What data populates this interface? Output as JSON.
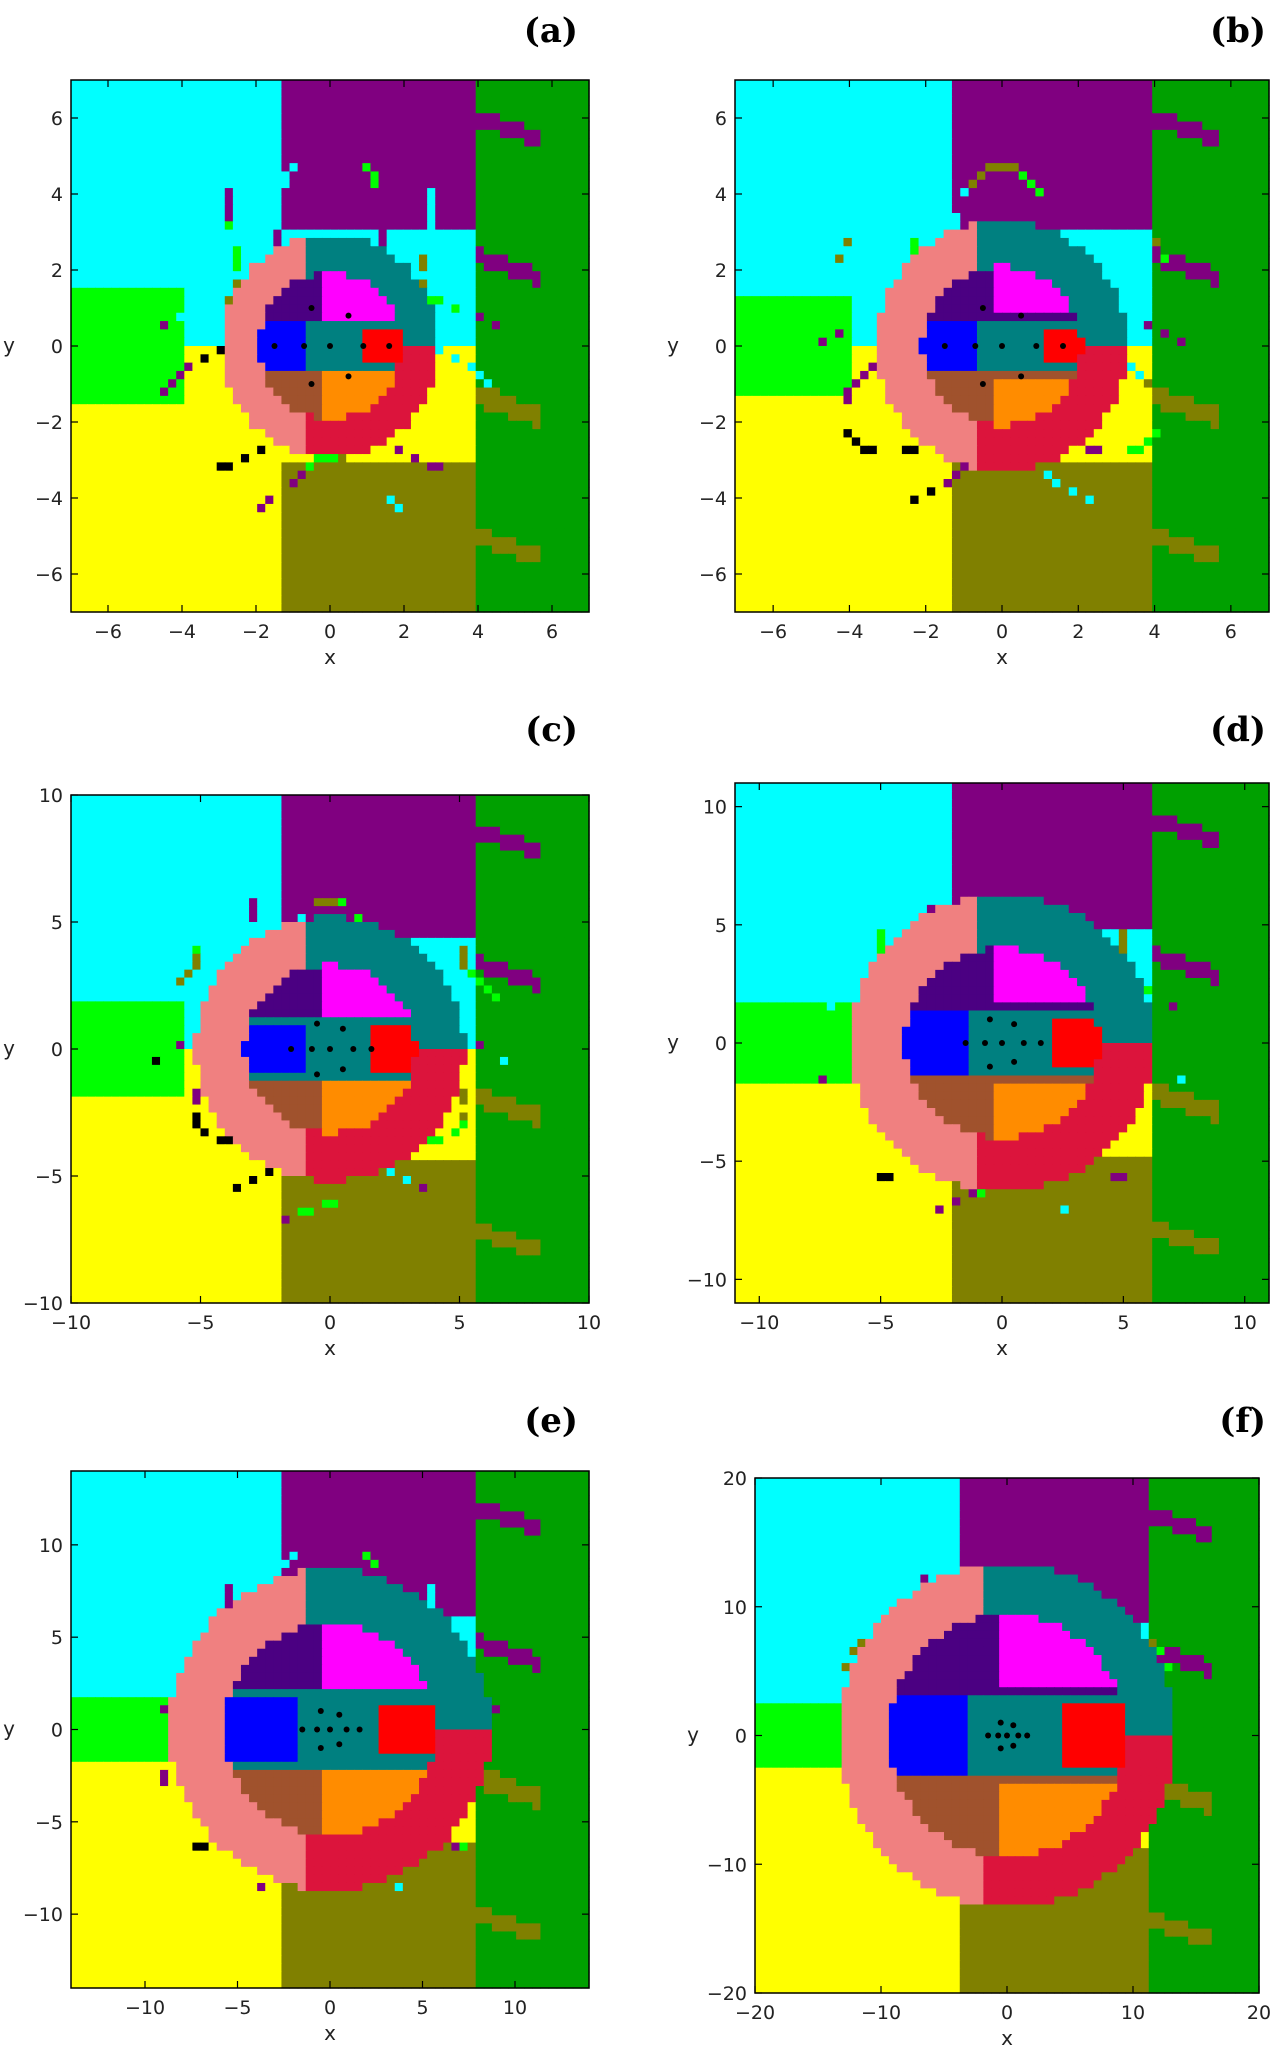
{
  "figure": {
    "palette": {
      "cyan": "#00FFFF",
      "yellow": "#FFFF00",
      "green": "#00A000",
      "lime": "#00FF00",
      "salmon": "#F08080",
      "teal": "#008080",
      "purple": "#800080",
      "olive": "#808000",
      "crimson": "#DC143C",
      "magenta": "#FF00FF",
      "blue": "#0000FF",
      "indigo": "#4B0082",
      "orange": "#FF8C00",
      "brown": "#A0522D",
      "red": "#FF0000",
      "black": "#000000"
    }
  },
  "chart_data": [
    {
      "type": "heatmap",
      "panel_label": "(a)",
      "xlabel": "x",
      "ylabel": "y",
      "xlim": [
        -7,
        7
      ],
      "ylim": [
        -7,
        7
      ],
      "xticks": [
        -6,
        -4,
        -2,
        0,
        2,
        4,
        6
      ],
      "yticks": [
        -6,
        -4,
        -2,
        0,
        2,
        4,
        6
      ],
      "xtick_labels": [
        "−6",
        "−4",
        "−2",
        "0",
        "2",
        "4",
        "6"
      ],
      "ytick_labels": [
        "−6",
        "−4",
        "−2",
        "0",
        "2",
        "4",
        "6"
      ],
      "equilibrium_points": [
        [
          -1.5,
          0
        ],
        [
          -0.7,
          0
        ],
        [
          0.5,
          0.8
        ],
        [
          0.5,
          -0.8
        ],
        [
          -0.5,
          -1.0
        ],
        [
          -0.5,
          1.0
        ],
        [
          0.9,
          0
        ],
        [
          1.6,
          0
        ],
        [
          0,
          0
        ]
      ]
    },
    {
      "type": "heatmap",
      "panel_label": "(b)",
      "xlabel": "x",
      "ylabel": "y",
      "xlim": [
        -7,
        7
      ],
      "ylim": [
        -7,
        7
      ],
      "xticks": [
        -6,
        -4,
        -2,
        0,
        2,
        4,
        6
      ],
      "yticks": [
        -6,
        -4,
        -2,
        0,
        2,
        4,
        6
      ],
      "xtick_labels": [
        "−6",
        "−4",
        "−2",
        "0",
        "2",
        "4",
        "6"
      ],
      "ytick_labels": [
        "−6",
        "−4",
        "−2",
        "0",
        "2",
        "4",
        "6"
      ],
      "equilibrium_points": [
        [
          -1.5,
          0
        ],
        [
          -0.7,
          0
        ],
        [
          0.5,
          0.8
        ],
        [
          0.5,
          -0.8
        ],
        [
          -0.5,
          -1.0
        ],
        [
          -0.5,
          1.0
        ],
        [
          0.9,
          0
        ],
        [
          1.6,
          0
        ],
        [
          0,
          0
        ]
      ]
    },
    {
      "type": "heatmap",
      "panel_label": "(c)",
      "xlabel": "x",
      "ylabel": "y",
      "xlim": [
        -10,
        10
      ],
      "ylim": [
        -10,
        10
      ],
      "xticks": [
        -10,
        -5,
        0,
        5,
        10
      ],
      "yticks": [
        -10,
        -5,
        0,
        5,
        10
      ],
      "xtick_labels": [
        "−10",
        "−5",
        "0",
        "5",
        "10"
      ],
      "ytick_labels": [
        "−10",
        "−5",
        "0",
        "5",
        "10"
      ],
      "equilibrium_points": [
        [
          -1.5,
          0
        ],
        [
          -0.7,
          0
        ],
        [
          0.5,
          0.8
        ],
        [
          0.5,
          -0.8
        ],
        [
          -0.5,
          -1.0
        ],
        [
          -0.5,
          1.0
        ],
        [
          0.9,
          0
        ],
        [
          1.6,
          0
        ],
        [
          0,
          0
        ]
      ]
    },
    {
      "type": "heatmap",
      "panel_label": "(d)",
      "xlabel": "x",
      "ylabel": "y",
      "xlim": [
        -11,
        11
      ],
      "ylim": [
        -11,
        11
      ],
      "xticks": [
        -10,
        -5,
        0,
        5,
        10
      ],
      "yticks": [
        -10,
        -5,
        0,
        5,
        10
      ],
      "xtick_labels": [
        "−10",
        "−5",
        "0",
        "5",
        "10"
      ],
      "ytick_labels": [
        "−10",
        "−5",
        "0",
        "5",
        "10"
      ],
      "equilibrium_points": [
        [
          -1.5,
          0
        ],
        [
          -0.7,
          0
        ],
        [
          0.5,
          0.8
        ],
        [
          0.5,
          -0.8
        ],
        [
          -0.5,
          -1.0
        ],
        [
          -0.5,
          1.0
        ],
        [
          0.9,
          0
        ],
        [
          1.6,
          0
        ],
        [
          0,
          0
        ]
      ]
    },
    {
      "type": "heatmap",
      "panel_label": "(e)",
      "xlabel": "x",
      "ylabel": "y",
      "xlim": [
        -14,
        14
      ],
      "ylim": [
        -14,
        14
      ],
      "xticks": [
        -10,
        -5,
        0,
        5,
        10
      ],
      "yticks": [
        -10,
        -5,
        0,
        5,
        10
      ],
      "xtick_labels": [
        "−10",
        "−5",
        "0",
        "5",
        "10"
      ],
      "ytick_labels": [
        "−10",
        "−5",
        "0",
        "5",
        "10"
      ],
      "equilibrium_points": [
        [
          -1.5,
          0
        ],
        [
          -0.7,
          0
        ],
        [
          0.5,
          0.8
        ],
        [
          0.5,
          -0.8
        ],
        [
          -0.5,
          -1.0
        ],
        [
          -0.5,
          1.0
        ],
        [
          0.9,
          0
        ],
        [
          1.6,
          0
        ],
        [
          0,
          0
        ]
      ]
    },
    {
      "type": "heatmap",
      "panel_label": "(f)",
      "xlabel": "x",
      "ylabel": "y",
      "xlim": [
        -20,
        20
      ],
      "ylim": [
        -20,
        20
      ],
      "xticks": [
        -20,
        -10,
        0,
        10,
        20
      ],
      "yticks": [
        -20,
        -10,
        0,
        10,
        20
      ],
      "xtick_labels": [
        "−20",
        "−10",
        "0",
        "10",
        "20"
      ],
      "ytick_labels": [
        "−20",
        "−10",
        "0",
        "10",
        "20"
      ],
      "equilibrium_points": [
        [
          -1.5,
          0
        ],
        [
          -0.7,
          0
        ],
        [
          0.5,
          0.8
        ],
        [
          0.5,
          -0.8
        ],
        [
          -0.5,
          -1.0
        ],
        [
          -0.5,
          1.0
        ],
        [
          0.9,
          0
        ],
        [
          1.6,
          0
        ],
        [
          0,
          0
        ]
      ]
    }
  ]
}
